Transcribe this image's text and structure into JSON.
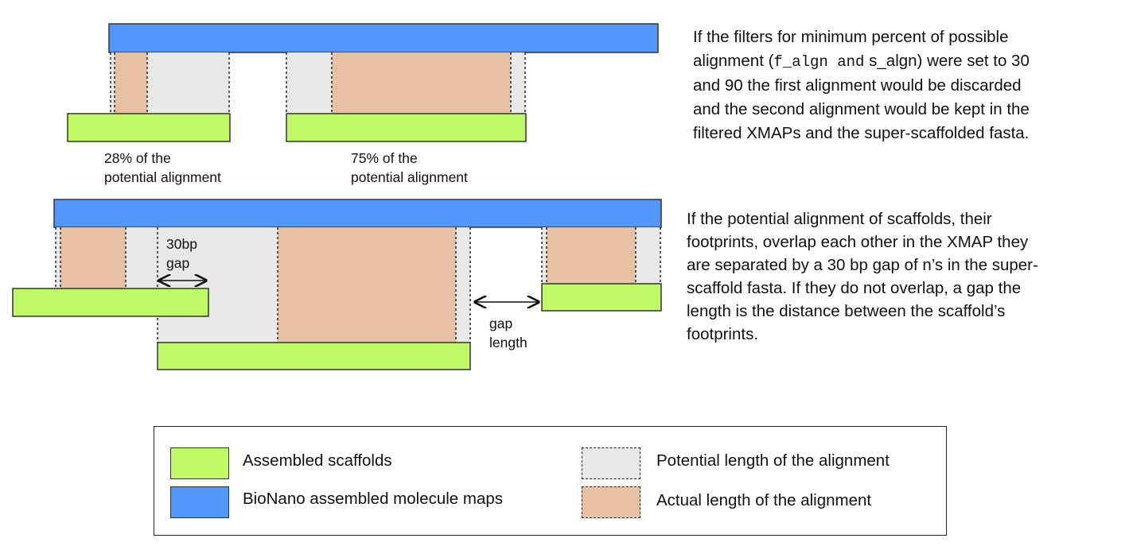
{
  "colors": {
    "scaffold": "#bff966",
    "molecule_map": "#5297fc",
    "potential": "#e8e8e8",
    "actual": "#e8c0a4",
    "outline": "#333333"
  },
  "top_panel": {
    "label_first": [
      "28% of the",
      "potential alignment"
    ],
    "label_second": [
      "75% of the",
      "potential alignment"
    ],
    "note": {
      "line1": "If the filters for minimum percent of possible",
      "line2_pre": "alignment (",
      "line2_code": "f_algn and",
      "line2_post": " s_algn) were set to 30",
      "line3": "and 90 the first alignment would be discarded",
      "line4": "and the second alignment would be kept in the",
      "line5": "filtered XMAPs and the super-scaffolded fasta."
    }
  },
  "bottom_panel": {
    "gap_label": [
      "30bp",
      "gap"
    ],
    "gap_length_label": [
      "gap",
      "length"
    ],
    "note": [
      "If the potential alignment of scaffolds, their",
      "footprints, overlap each other in the XMAP they",
      "are separated by a 30 bp gap of n’s in the super-",
      "scaffold fasta. If they do not overlap, a gap the",
      "length is the distance between the scaffold’s",
      "footprints."
    ]
  },
  "legend": {
    "scaffolds": "Assembled scaffolds",
    "molecule_maps": "BioNano assembled molecule maps",
    "potential": "Potential length of the alignment",
    "actual": "Actual length of the alignment"
  }
}
